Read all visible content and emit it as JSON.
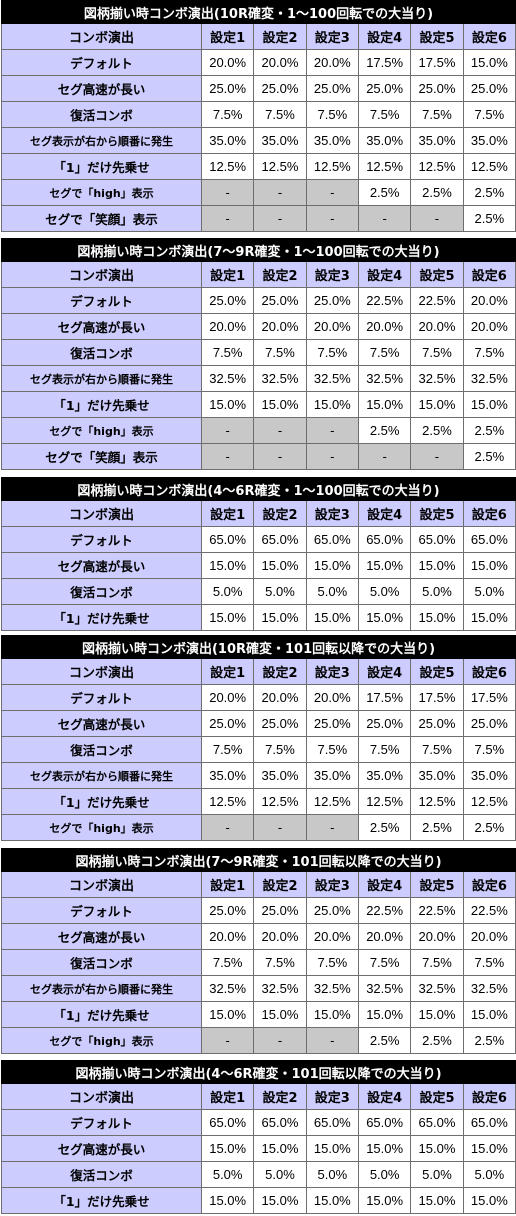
{
  "colors": {
    "title_bg": "#000000",
    "header_bg": "#ccccff",
    "na_bg": "#c8c8c8"
  },
  "tables": [
    {
      "title": "図柄揃い時コンボ演出(10R確変・1～100回転での大当り)",
      "header": [
        "コンボ演出",
        "設定1",
        "設定2",
        "設定3",
        "設定4",
        "設定5",
        "設定6"
      ],
      "rows": [
        {
          "label": "デフォルト",
          "values": [
            "20.0%",
            "20.0%",
            "20.0%",
            "17.5%",
            "17.5%",
            "15.0%"
          ]
        },
        {
          "label": "セグ高速が長い",
          "values": [
            "25.0%",
            "25.0%",
            "25.0%",
            "25.0%",
            "25.0%",
            "25.0%"
          ]
        },
        {
          "label": "復活コンボ",
          "values": [
            "7.5%",
            "7.5%",
            "7.5%",
            "7.5%",
            "7.5%",
            "7.5%"
          ]
        },
        {
          "label": "セグ表示が右から順番に発生",
          "values": [
            "35.0%",
            "35.0%",
            "35.0%",
            "35.0%",
            "35.0%",
            "35.0%"
          ]
        },
        {
          "label": "「1」だけ先乗せ",
          "values": [
            "12.5%",
            "12.5%",
            "12.5%",
            "12.5%",
            "12.5%",
            "12.5%"
          ]
        },
        {
          "label": "セグで「high」表示",
          "values": [
            "-",
            "-",
            "-",
            "2.5%",
            "2.5%",
            "2.5%"
          ]
        },
        {
          "label": "セグで「笑顔」表示",
          "values": [
            "-",
            "-",
            "-",
            "-",
            "-",
            "2.5%"
          ]
        }
      ]
    },
    {
      "title": "図柄揃い時コンボ演出(7～9R確変・1～100回転での大当り)",
      "header": [
        "コンボ演出",
        "設定1",
        "設定2",
        "設定3",
        "設定4",
        "設定5",
        "設定6"
      ],
      "rows": [
        {
          "label": "デフォルト",
          "values": [
            "25.0%",
            "25.0%",
            "25.0%",
            "22.5%",
            "22.5%",
            "20.0%"
          ]
        },
        {
          "label": "セグ高速が長い",
          "values": [
            "20.0%",
            "20.0%",
            "20.0%",
            "20.0%",
            "20.0%",
            "20.0%"
          ]
        },
        {
          "label": "復活コンボ",
          "values": [
            "7.5%",
            "7.5%",
            "7.5%",
            "7.5%",
            "7.5%",
            "7.5%"
          ]
        },
        {
          "label": "セグ表示が右から順番に発生",
          "values": [
            "32.5%",
            "32.5%",
            "32.5%",
            "32.5%",
            "32.5%",
            "32.5%"
          ]
        },
        {
          "label": "「1」だけ先乗せ",
          "values": [
            "15.0%",
            "15.0%",
            "15.0%",
            "15.0%",
            "15.0%",
            "15.0%"
          ]
        },
        {
          "label": "セグで「high」表示",
          "values": [
            "-",
            "-",
            "-",
            "2.5%",
            "2.5%",
            "2.5%"
          ]
        },
        {
          "label": "セグで「笑顔」表示",
          "values": [
            "-",
            "-",
            "-",
            "-",
            "-",
            "2.5%"
          ]
        }
      ]
    },
    {
      "title": "図柄揃い時コンボ演出(4～6R確変・1～100回転での大当り)",
      "header": [
        "コンボ演出",
        "設定1",
        "設定2",
        "設定3",
        "設定4",
        "設定5",
        "設定6"
      ],
      "rows": [
        {
          "label": "デフォルト",
          "values": [
            "65.0%",
            "65.0%",
            "65.0%",
            "65.0%",
            "65.0%",
            "65.0%"
          ]
        },
        {
          "label": "セグ高速が長い",
          "values": [
            "15.0%",
            "15.0%",
            "15.0%",
            "15.0%",
            "15.0%",
            "15.0%"
          ]
        },
        {
          "label": "復活コンボ",
          "values": [
            "5.0%",
            "5.0%",
            "5.0%",
            "5.0%",
            "5.0%",
            "5.0%"
          ]
        },
        {
          "label": "「1」だけ先乗せ",
          "values": [
            "15.0%",
            "15.0%",
            "15.0%",
            "15.0%",
            "15.0%",
            "15.0%"
          ]
        }
      ]
    },
    {
      "title": "図柄揃い時コンボ演出(10R確変・101回転以降での大当り)",
      "header": [
        "コンボ演出",
        "設定1",
        "設定2",
        "設定3",
        "設定4",
        "設定5",
        "設定6"
      ],
      "rows": [
        {
          "label": "デフォルト",
          "values": [
            "20.0%",
            "20.0%",
            "20.0%",
            "17.5%",
            "17.5%",
            "17.5%"
          ]
        },
        {
          "label": "セグ高速が長い",
          "values": [
            "25.0%",
            "25.0%",
            "25.0%",
            "25.0%",
            "25.0%",
            "25.0%"
          ]
        },
        {
          "label": "復活コンボ",
          "values": [
            "7.5%",
            "7.5%",
            "7.5%",
            "7.5%",
            "7.5%",
            "7.5%"
          ]
        },
        {
          "label": "セグ表示が右から順番に発生",
          "values": [
            "35.0%",
            "35.0%",
            "35.0%",
            "35.0%",
            "35.0%",
            "35.0%"
          ]
        },
        {
          "label": "「1」だけ先乗せ",
          "values": [
            "12.5%",
            "12.5%",
            "12.5%",
            "12.5%",
            "12.5%",
            "12.5%"
          ]
        },
        {
          "label": "セグで「high」表示",
          "values": [
            "-",
            "-",
            "-",
            "2.5%",
            "2.5%",
            "2.5%"
          ]
        }
      ]
    },
    {
      "title": "図柄揃い時コンボ演出(7～9R確変・101回転以降での大当り)",
      "header": [
        "コンボ演出",
        "設定1",
        "設定2",
        "設定3",
        "設定4",
        "設定5",
        "設定6"
      ],
      "rows": [
        {
          "label": "デフォルト",
          "values": [
            "25.0%",
            "25.0%",
            "25.0%",
            "22.5%",
            "22.5%",
            "22.5%"
          ]
        },
        {
          "label": "セグ高速が長い",
          "values": [
            "20.0%",
            "20.0%",
            "20.0%",
            "20.0%",
            "20.0%",
            "20.0%"
          ]
        },
        {
          "label": "復活コンボ",
          "values": [
            "7.5%",
            "7.5%",
            "7.5%",
            "7.5%",
            "7.5%",
            "7.5%"
          ]
        },
        {
          "label": "セグ表示が右から順番に発生",
          "values": [
            "32.5%",
            "32.5%",
            "32.5%",
            "32.5%",
            "32.5%",
            "32.5%"
          ]
        },
        {
          "label": "「1」だけ先乗せ",
          "values": [
            "15.0%",
            "15.0%",
            "15.0%",
            "15.0%",
            "15.0%",
            "15.0%"
          ]
        },
        {
          "label": "セグで「high」表示",
          "values": [
            "-",
            "-",
            "-",
            "2.5%",
            "2.5%",
            "2.5%"
          ]
        }
      ]
    },
    {
      "title": "図柄揃い時コンボ演出(4～6R確変・101回転以降での大当り)",
      "header": [
        "コンボ演出",
        "設定1",
        "設定2",
        "設定3",
        "設定4",
        "設定5",
        "設定6"
      ],
      "rows": [
        {
          "label": "デフォルト",
          "values": [
            "65.0%",
            "65.0%",
            "65.0%",
            "65.0%",
            "65.0%",
            "65.0%"
          ]
        },
        {
          "label": "セグ高速が長い",
          "values": [
            "15.0%",
            "15.0%",
            "15.0%",
            "15.0%",
            "15.0%",
            "15.0%"
          ]
        },
        {
          "label": "復活コンボ",
          "values": [
            "5.0%",
            "5.0%",
            "5.0%",
            "5.0%",
            "5.0%",
            "5.0%"
          ]
        },
        {
          "label": "「1」だけ先乗せ",
          "values": [
            "15.0%",
            "15.0%",
            "15.0%",
            "15.0%",
            "15.0%",
            "15.0%"
          ]
        }
      ]
    }
  ]
}
